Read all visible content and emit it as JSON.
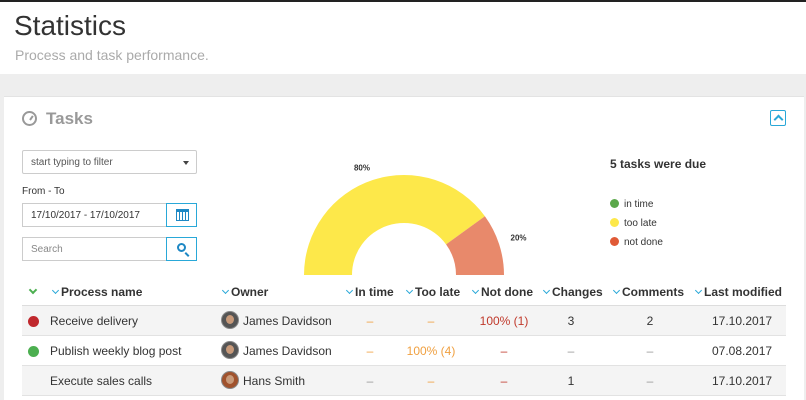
{
  "header": {
    "title": "Statistics",
    "subtitle": "Process and task performance."
  },
  "card": {
    "title": "Tasks",
    "icon": "gauge-icon",
    "collapse_icon": "chevron-up-icon"
  },
  "filters": {
    "select_value": "start typing to filter",
    "date_label": "From - To",
    "date_value": "17/10/2017 - 17/10/2017",
    "search_placeholder": "Search"
  },
  "chart_data": {
    "type": "pie",
    "subtype": "half-donut",
    "labels": [
      "in time",
      "too late",
      "not done"
    ],
    "values": [
      0,
      80,
      20
    ],
    "data_labels": [
      "",
      "80%",
      "20%"
    ],
    "colors": [
      "#5ba84a",
      "#fde84a",
      "#e8896b"
    ]
  },
  "summary": {
    "due_text": "5 tasks were due",
    "legend": [
      {
        "label": "in time",
        "color": "#5ba84a"
      },
      {
        "label": "too late",
        "color": "#fde84a"
      },
      {
        "label": "not done",
        "color": "#e05a36"
      }
    ]
  },
  "table": {
    "columns": [
      "Process name",
      "Owner",
      "In time",
      "Too late",
      "Not done",
      "Changes",
      "Comments",
      "Last modified"
    ],
    "rows": [
      {
        "status_color": "#c0282d",
        "process": "Receive delivery",
        "owner": "James Davidson",
        "in_time": "–",
        "too_late": "–",
        "not_done": "100% (1)",
        "changes": "3",
        "comments": "2",
        "last_modified": "17.10.2017"
      },
      {
        "status_color": "#4caf50",
        "process": "Publish weekly blog post",
        "owner": "James Davidson",
        "in_time": "–",
        "too_late": "100% (4)",
        "not_done": "–",
        "changes": "–",
        "comments": "–",
        "last_modified": "07.08.2017"
      },
      {
        "status_color": "",
        "process": "Execute sales calls",
        "owner": "Hans Smith",
        "in_time": "–",
        "too_late": "–",
        "not_done": "–",
        "changes": "1",
        "comments": "–",
        "last_modified": "17.10.2017"
      }
    ]
  }
}
